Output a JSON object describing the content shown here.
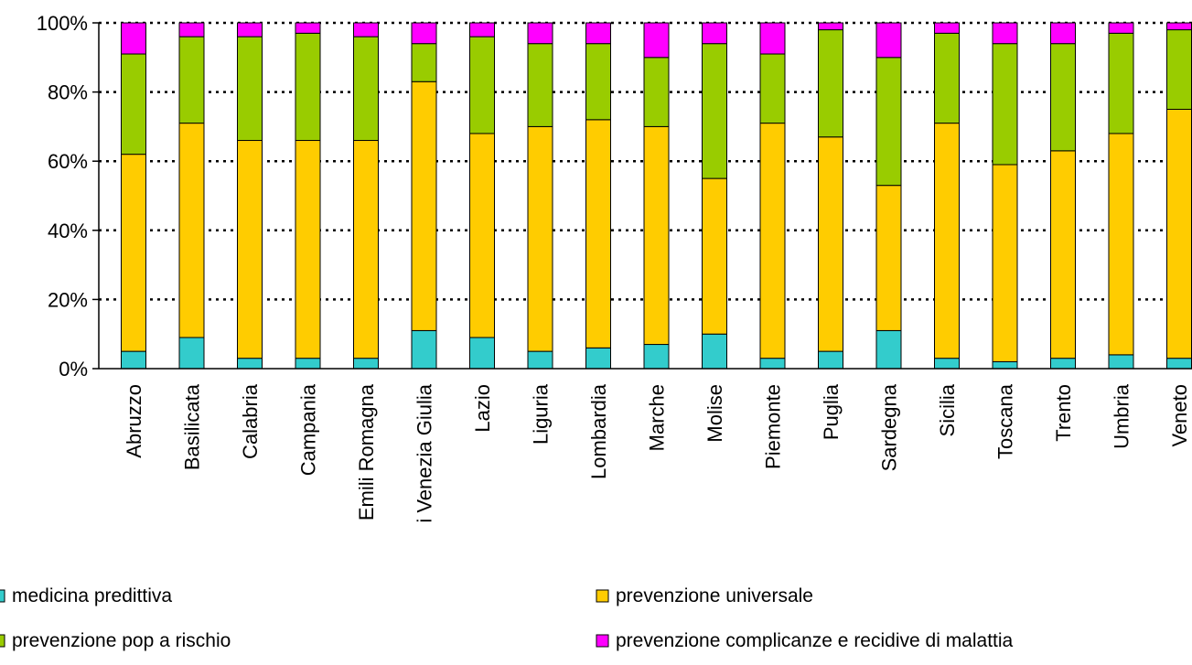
{
  "chart_data": {
    "type": "bar",
    "stacked": true,
    "percent": true,
    "categories": [
      "Abruzzo",
      "Basilicata",
      "Calabria",
      "Campania",
      "Emili Romagna",
      "i Venezia Giulia",
      "Lazio",
      "Liguria",
      "Lombardia",
      "Marche",
      "Molise",
      "Piemonte",
      "Puglia",
      "Sardegna",
      "Sicilia",
      "Toscana",
      "Trento",
      "Umbria",
      "Veneto"
    ],
    "series": [
      {
        "name": "medicina predittiva",
        "color": "#33CCCC",
        "values": [
          5,
          9,
          3,
          3,
          3,
          11,
          9,
          5,
          6,
          7,
          10,
          3,
          5,
          11,
          3,
          2,
          3,
          4,
          3
        ]
      },
      {
        "name": "prevenzione universale",
        "color": "#FFCC00",
        "values": [
          57,
          62,
          63,
          63,
          63,
          72,
          59,
          65,
          66,
          63,
          45,
          68,
          62,
          42,
          68,
          57,
          60,
          64,
          72
        ]
      },
      {
        "name": "prevenzione pop a rischio",
        "color": "#99CC00",
        "values": [
          29,
          25,
          30,
          31,
          30,
          11,
          28,
          24,
          22,
          20,
          39,
          20,
          31,
          37,
          26,
          35,
          31,
          29,
          23
        ]
      },
      {
        "name": "prevenzione complicanze e recidive di malattia",
        "color": "#FF00FF",
        "values": [
          9,
          4,
          4,
          3,
          4,
          6,
          4,
          6,
          6,
          10,
          6,
          9,
          2,
          10,
          3,
          6,
          6,
          3,
          2
        ]
      }
    ],
    "y_ticks": [
      "0%",
      "20%",
      "40%",
      "60%",
      "80%",
      "100%"
    ],
    "ylim": [
      0,
      100
    ],
    "grid": "dotted horizontal",
    "legend_position": "bottom"
  }
}
